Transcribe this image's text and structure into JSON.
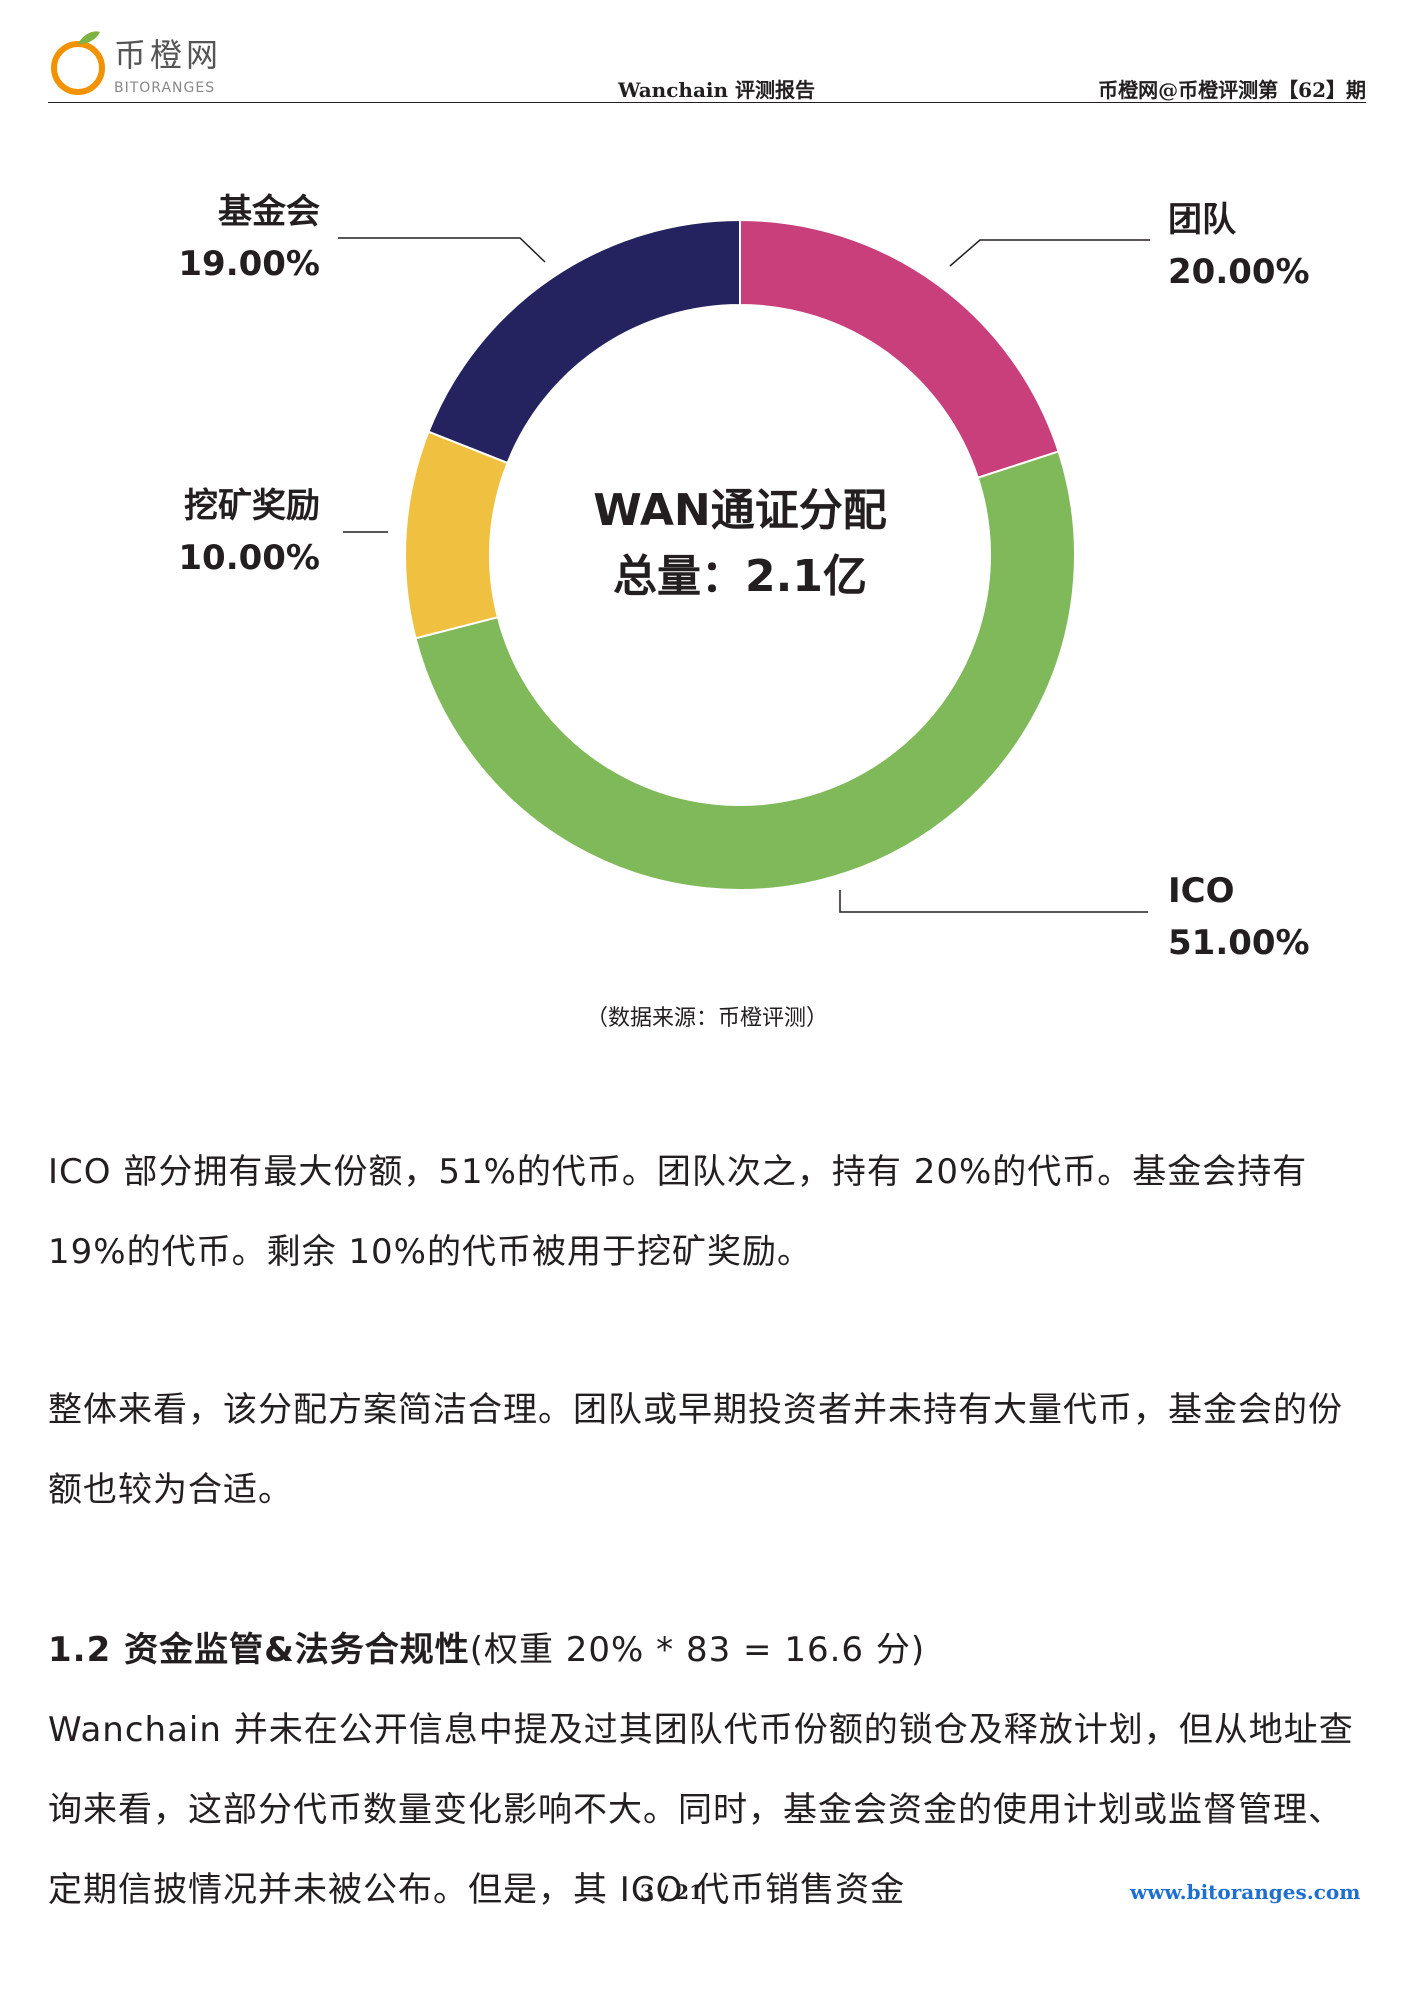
{
  "header": {
    "logo_cn": "币橙网",
    "logo_en": "BITORANGES",
    "center": "Wanchain 评测报告",
    "right": "币橙网@币橙评测第【62】期"
  },
  "chart_data": {
    "type": "pie",
    "donut": true,
    "center_lines": [
      "WAN通证分配",
      "总量：2.1亿"
    ],
    "slices": [
      {
        "label": "团队",
        "value": 20.0,
        "display": "20.00%",
        "color": "#c83f7c"
      },
      {
        "label": "ICO",
        "value": 51.0,
        "display": "51.00%",
        "color": "#80b95a"
      },
      {
        "label": "挖矿奖励",
        "value": 10.0,
        "display": "10.00%",
        "color": "#f0c141"
      },
      {
        "label": "基金会",
        "value": 19.0,
        "display": "19.00%",
        "color": "#24235f"
      }
    ]
  },
  "source": "（数据来源：币橙评测）",
  "paragraphs": {
    "p1": "ICO 部分拥有最大份额，51%的代币。团队次之，持有 20%的代币。基金会持有 19%的代币。剩余 10%的代币被用于挖矿奖励。",
    "p2": "整体来看，该分配方案简洁合理。团队或早期投资者并未持有大量代币，基金会的份额也较为合适。",
    "section_title": "1.2 资金监管&法务合规性",
    "section_weight": "(权重 20% * 83 = 16.6 分)",
    "p3": "Wanchain 并未在公开信息中提及过其团队代币份额的锁仓及释放计划，但从地址查询来看，这部分代币数量变化影响不大。同时，基金会资金的使用计划或监督管理、定期信披情况并未被公布。但是，其 ICO 代币销售资金"
  },
  "footer": {
    "page": "3 / 21",
    "url": "www.bitoranges.com"
  }
}
